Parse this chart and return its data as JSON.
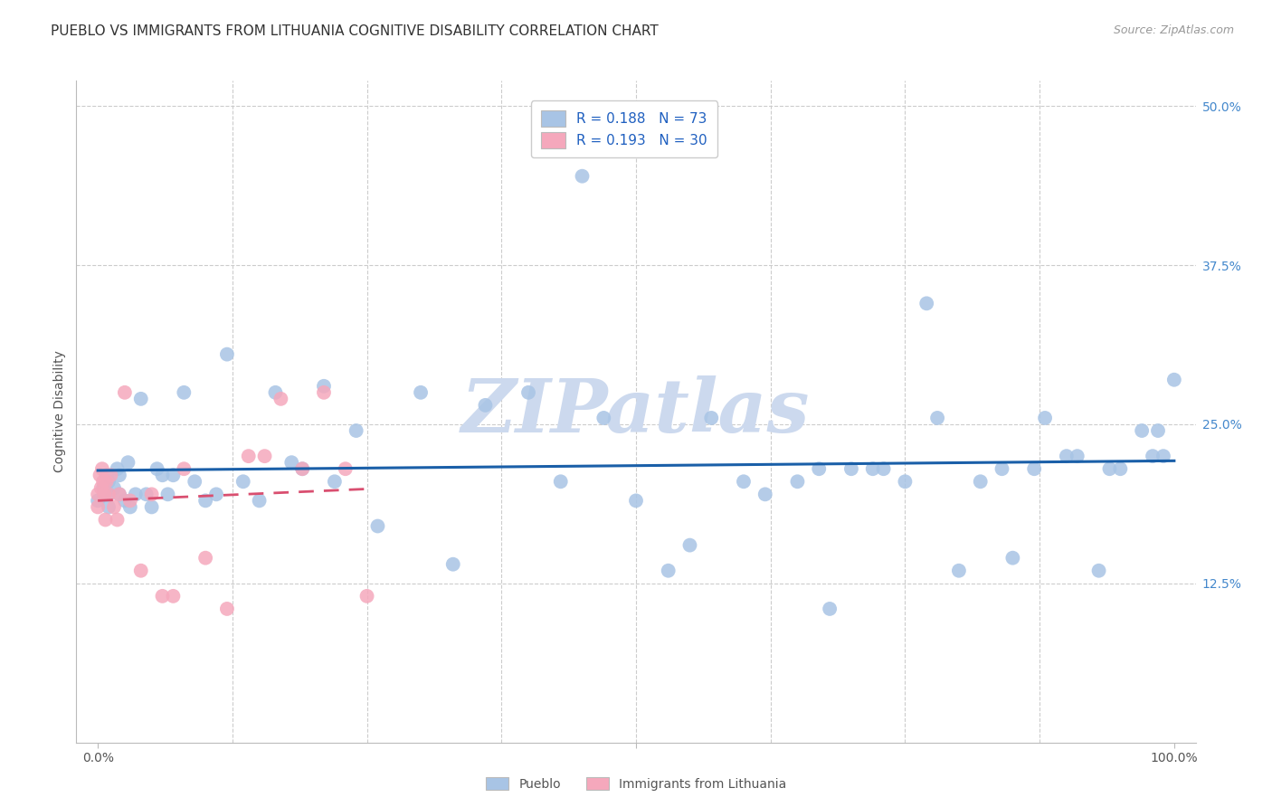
{
  "title": "PUEBLO VS IMMIGRANTS FROM LITHUANIA COGNITIVE DISABILITY CORRELATION CHART",
  "source": "Source: ZipAtlas.com",
  "ylabel": "Cognitive Disability",
  "watermark": "ZIPatlas",
  "xlim": [
    -0.02,
    1.02
  ],
  "ylim": [
    0.0,
    0.52
  ],
  "pueblo_R": "0.188",
  "pueblo_N": "73",
  "lithuania_R": "0.193",
  "lithuania_N": "30",
  "pueblo_color": "#a8c4e5",
  "lithuania_color": "#f5a8bc",
  "pueblo_line_color": "#1a5fa8",
  "lithuania_line_color": "#d94f70",
  "bg_color": "#ffffff",
  "grid_color": "#cccccc",
  "title_fontsize": 11,
  "source_fontsize": 9,
  "label_fontsize": 10,
  "tick_fontsize": 10,
  "watermark_color": "#ccd9ee",
  "watermark_fontsize": 60,
  "legend_text_color": "#2060c0",
  "legend_N_color": "#e03060",
  "pueblo_scatter_x": [
    0.0,
    0.005,
    0.008,
    0.01,
    0.01,
    0.01,
    0.015,
    0.018,
    0.02,
    0.02,
    0.025,
    0.028,
    0.03,
    0.035,
    0.04,
    0.045,
    0.05,
    0.055,
    0.06,
    0.065,
    0.07,
    0.08,
    0.09,
    0.1,
    0.11,
    0.12,
    0.135,
    0.15,
    0.165,
    0.18,
    0.19,
    0.21,
    0.22,
    0.24,
    0.26,
    0.3,
    0.33,
    0.36,
    0.4,
    0.43,
    0.45,
    0.47,
    0.5,
    0.53,
    0.55,
    0.57,
    0.6,
    0.62,
    0.65,
    0.67,
    0.68,
    0.7,
    0.72,
    0.73,
    0.75,
    0.77,
    0.78,
    0.8,
    0.82,
    0.84,
    0.85,
    0.87,
    0.88,
    0.9,
    0.91,
    0.93,
    0.94,
    0.95,
    0.97,
    0.98,
    0.985,
    0.99,
    1.0
  ],
  "pueblo_scatter_y": [
    0.19,
    0.2,
    0.21,
    0.195,
    0.185,
    0.205,
    0.2,
    0.215,
    0.195,
    0.21,
    0.19,
    0.22,
    0.185,
    0.195,
    0.27,
    0.195,
    0.185,
    0.215,
    0.21,
    0.195,
    0.21,
    0.275,
    0.205,
    0.19,
    0.195,
    0.305,
    0.205,
    0.19,
    0.275,
    0.22,
    0.215,
    0.28,
    0.205,
    0.245,
    0.17,
    0.275,
    0.14,
    0.265,
    0.275,
    0.205,
    0.445,
    0.255,
    0.19,
    0.135,
    0.155,
    0.255,
    0.205,
    0.195,
    0.205,
    0.215,
    0.105,
    0.215,
    0.215,
    0.215,
    0.205,
    0.345,
    0.255,
    0.135,
    0.205,
    0.215,
    0.145,
    0.215,
    0.255,
    0.225,
    0.225,
    0.135,
    0.215,
    0.215,
    0.245,
    0.225,
    0.245,
    0.225,
    0.285
  ],
  "lithuania_scatter_x": [
    0.0,
    0.0,
    0.002,
    0.003,
    0.004,
    0.005,
    0.006,
    0.007,
    0.008,
    0.01,
    0.012,
    0.015,
    0.018,
    0.02,
    0.025,
    0.03,
    0.04,
    0.05,
    0.06,
    0.07,
    0.08,
    0.1,
    0.12,
    0.14,
    0.155,
    0.17,
    0.19,
    0.21,
    0.23,
    0.25
  ],
  "lithuania_scatter_y": [
    0.195,
    0.185,
    0.21,
    0.2,
    0.215,
    0.205,
    0.195,
    0.175,
    0.205,
    0.195,
    0.21,
    0.185,
    0.175,
    0.195,
    0.275,
    0.19,
    0.135,
    0.195,
    0.115,
    0.115,
    0.215,
    0.145,
    0.105,
    0.225,
    0.225,
    0.27,
    0.215,
    0.275,
    0.215,
    0.115
  ]
}
